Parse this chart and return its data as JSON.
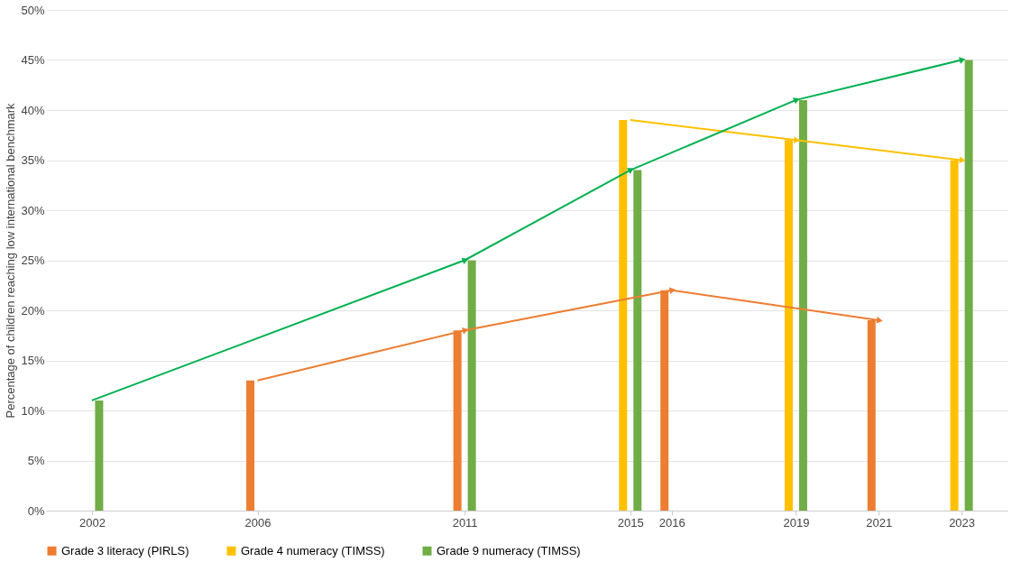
{
  "chart_data": {
    "type": "bar",
    "ylabel": "Percentage of children reaching low international benchmark",
    "xlim": [
      2001,
      2024
    ],
    "xticks": [
      2002,
      2006,
      2011,
      2015,
      2016,
      2019,
      2021,
      2023
    ],
    "ylim": [
      0,
      50
    ],
    "yticks": [
      {
        "value": 0,
        "label": "0%"
      },
      {
        "value": 5,
        "label": "5%"
      },
      {
        "value": 10,
        "label": "10%"
      },
      {
        "value": 15,
        "label": "15%"
      },
      {
        "value": 20,
        "label": "20%"
      },
      {
        "value": 25,
        "label": "25%"
      },
      {
        "value": 30,
        "label": "30%"
      },
      {
        "value": 35,
        "label": "35%"
      },
      {
        "value": 40,
        "label": "40%"
      },
      {
        "value": 45,
        "label": "45%"
      },
      {
        "value": 50,
        "label": "50%"
      }
    ],
    "grid": "y",
    "legend": "bottom",
    "marker": "triangle",
    "line_style": "solid",
    "series": [
      {
        "name": "Grade 3 literacy (PIRLS)",
        "color": "#ed7d31",
        "x": [
          2006,
          2011,
          2016,
          2021
        ],
        "values": [
          13,
          18,
          22,
          19
        ]
      },
      {
        "name": "Grade 4 numeracy (TIMSS)",
        "color": "#ffc000",
        "x": [
          2015,
          2019,
          2023
        ],
        "values": [
          39,
          37,
          35
        ]
      },
      {
        "name": "Grade 9 numeracy (TIMSS)",
        "color": "#70ad47",
        "x": [
          2002,
          2011,
          2015,
          2019,
          2023
        ],
        "values": [
          11,
          25,
          34,
          41,
          45
        ]
      },
      {
        "type": "line",
        "color": "#ed7d31",
        "x": [
          2006,
          2011,
          2016,
          2021
        ],
        "values": [
          13,
          18,
          22,
          19
        ]
      },
      {
        "type": "line",
        "color": "#ffc000",
        "x": [
          2015,
          2019,
          2023
        ],
        "values": [
          39,
          37,
          35
        ]
      },
      {
        "type": "line",
        "color": "#00b050",
        "x": [
          2002,
          2011,
          2015,
          2019,
          2023
        ],
        "values": [
          11,
          25,
          34,
          41,
          45
        ]
      }
    ]
  }
}
